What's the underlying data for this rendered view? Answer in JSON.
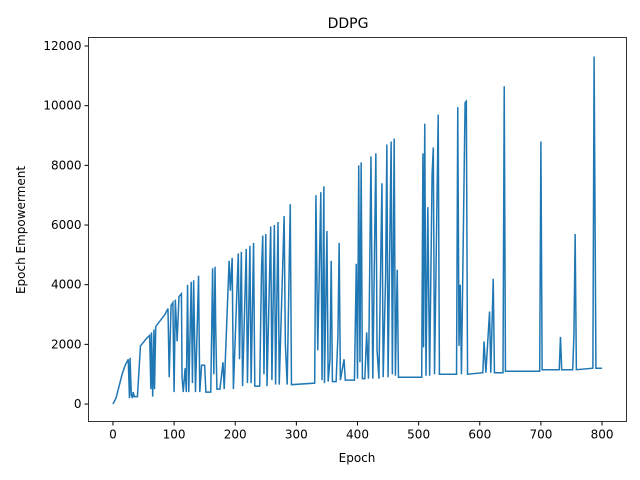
{
  "chart_data": {
    "type": "line",
    "title": "DDPG",
    "xlabel": "Epoch",
    "ylabel": "Epoch Empowerment",
    "color": "#1f77b4",
    "xlim": [
      -40,
      840
    ],
    "ylim": [
      -585,
      12285
    ],
    "xticks": [
      0,
      100,
      200,
      300,
      400,
      500,
      600,
      700,
      800
    ],
    "yticks": [
      0,
      2000,
      4000,
      6000,
      8000,
      10000,
      12000
    ],
    "x": [
      0,
      5,
      10,
      15,
      20,
      25,
      27,
      28,
      30,
      32,
      33,
      35,
      38,
      40,
      45,
      55,
      60,
      62,
      63,
      65,
      67,
      68,
      70,
      85,
      90,
      92,
      95,
      98,
      100,
      102,
      105,
      108,
      112,
      113,
      115,
      118,
      120,
      122,
      124,
      128,
      130,
      132,
      135,
      140,
      142,
      145,
      150,
      152,
      160,
      163,
      165,
      167,
      168,
      170,
      175,
      180,
      182,
      190,
      192,
      195,
      197,
      205,
      207,
      210,
      212,
      218,
      220,
      224,
      226,
      230,
      232,
      240,
      243,
      245,
      247,
      250,
      252,
      258,
      260,
      264,
      266,
      270,
      272,
      280,
      282,
      285,
      290,
      292,
      330,
      332,
      335,
      340,
      342,
      345,
      346,
      350,
      352,
      355,
      357,
      359,
      365,
      368,
      370,
      372,
      378,
      380,
      395,
      398,
      400,
      402,
      404,
      406,
      408,
      412,
      415,
      418,
      422,
      425,
      430,
      432,
      435,
      440,
      442,
      446,
      448,
      450,
      455,
      457,
      460,
      462,
      465,
      467,
      505,
      507,
      508,
      510,
      512,
      515,
      518,
      522,
      524,
      526,
      532,
      534,
      562,
      564,
      566,
      568,
      570,
      576,
      578,
      580,
      605,
      607,
      610,
      616,
      618,
      622,
      624,
      638,
      640,
      642,
      698,
      700,
      702,
      730,
      732,
      734,
      752,
      754,
      756,
      758,
      785,
      787,
      790,
      800
    ],
    "values": [
      0,
      200,
      600,
      1000,
      1300,
      1500,
      200,
      1550,
      300,
      200,
      400,
      250,
      250,
      250,
      1950,
      2200,
      2300,
      500,
      2400,
      250,
      2500,
      500,
      2600,
      3000,
      3200,
      900,
      3300,
      3400,
      400,
      3500,
      2100,
      3600,
      3700,
      900,
      400,
      1200,
      400,
      4000,
      400,
      4100,
      700,
      4150,
      400,
      4300,
      400,
      1300,
      1300,
      400,
      400,
      4550,
      1000,
      4600,
      2700,
      500,
      500,
      1400,
      500,
      4800,
      3800,
      4900,
      500,
      5050,
      1500,
      5100,
      600,
      5200,
      700,
      5300,
      700,
      5400,
      600,
      600,
      4500,
      5650,
      1000,
      5700,
      600,
      5950,
      800,
      6000,
      650,
      6100,
      650,
      6300,
      2000,
      650,
      6700,
      650,
      700,
      7000,
      1800,
      7100,
      800,
      7300,
      700,
      5800,
      750,
      1500,
      4800,
      750,
      750,
      2300,
      5400,
      800,
      1500,
      800,
      800,
      4700,
      850,
      8000,
      1400,
      8100,
      850,
      850,
      2400,
      850,
      8300,
      850,
      8400,
      1800,
      850,
      7400,
      900,
      4300,
      8700,
      900,
      8800,
      1000,
      8900,
      950,
      4500,
      900,
      900,
      8400,
      1900,
      9400,
      950,
      6600,
      950,
      7700,
      8600,
      1000,
      9700,
      1000,
      1000,
      9950,
      1950,
      4000,
      1000,
      10100,
      10150,
      1000,
      1050,
      2100,
      1050,
      3100,
      1050,
      4200,
      1050,
      1050,
      10650,
      1100,
      1100,
      8800,
      1150,
      1150,
      2250,
      1150,
      1150,
      2300,
      5700,
      1150,
      1200,
      11650,
      1200,
      1200
    ]
  }
}
